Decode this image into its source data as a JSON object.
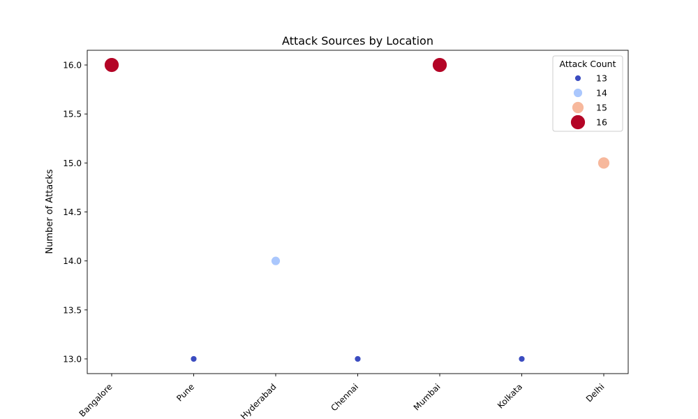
{
  "chart_data": {
    "type": "scatter",
    "title": "Attack Sources by Location",
    "xlabel": "",
    "ylabel": "Number of Attacks",
    "categories": [
      "Bangalore",
      "Pune",
      "Hyderabad",
      "Chennai",
      "Mumbai",
      "Kolkata",
      "Delhi"
    ],
    "values": [
      16,
      13,
      14,
      13,
      16,
      13,
      15
    ],
    "ylim": [
      12.85,
      16.15
    ],
    "yticks": [
      "13.0",
      "13.5",
      "14.0",
      "14.5",
      "15.0",
      "15.5",
      "16.0"
    ],
    "grid": false,
    "legend": {
      "title": "Attack Count",
      "position": "top-right",
      "entries": [
        {
          "label": "13",
          "value": 13,
          "color": "#3b4cc0"
        },
        {
          "label": "14",
          "value": 14,
          "color": "#aac7fd"
        },
        {
          "label": "15",
          "value": 15,
          "color": "#f7b89c"
        },
        {
          "label": "16",
          "value": 16,
          "color": "#b40426"
        }
      ]
    }
  }
}
